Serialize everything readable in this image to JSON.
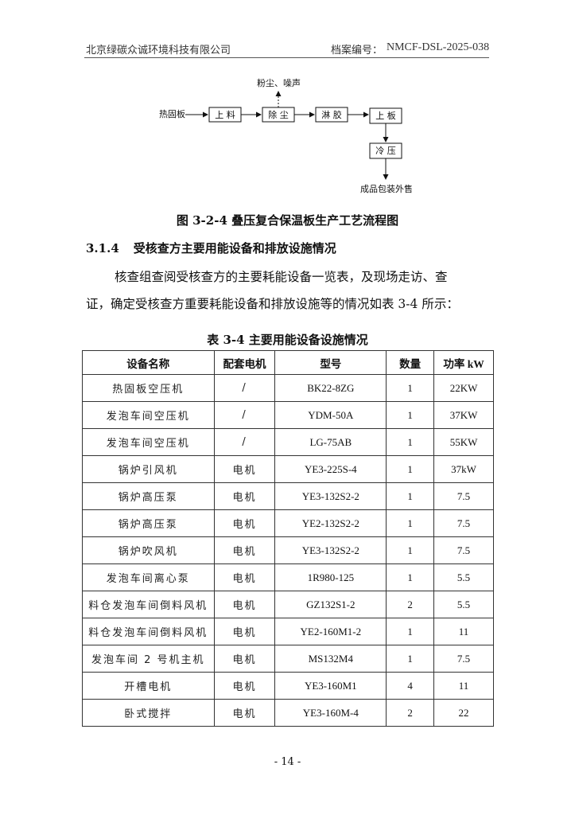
{
  "header": {
    "company": "北京绿碳众诚环境科技有限公司",
    "archive_label": "档案编号：",
    "archive_no": "NMCF-DSL-2025-038"
  },
  "flow": {
    "input": "热固板",
    "steps": [
      "上 料",
      "除 尘",
      "淋 胶",
      "上 板",
      "冷 压"
    ],
    "emission": "粉尘、噪声",
    "output": "成品包装外售"
  },
  "figure_caption": "图 3-2-4 叠压复合保温板生产工艺流程图",
  "section": {
    "number": "3.1.4",
    "title": "受核查方主要用能设备和排放设施情况"
  },
  "paragraph_line1": "核查组查阅受核查方的主要耗能设备一览表，及现场走访、查",
  "paragraph_line2": "证，确定受核查方重要耗能设备和排放设施等的情况如表 3-4 所示：",
  "table_caption": "表 3-4  主要用能设备设施情况",
  "table": {
    "headers": [
      "设备名称",
      "配套电机",
      "型号",
      "数量",
      "功率 kW"
    ],
    "rows": [
      [
        "热固板空压机",
        "/",
        "BK22-8ZG",
        "1",
        "22KW"
      ],
      [
        "发泡车间空压机",
        "/",
        "YDM-50A",
        "1",
        "37KW"
      ],
      [
        "发泡车间空压机",
        "/",
        "LG-75AB",
        "1",
        "55KW"
      ],
      [
        "锅炉引风机",
        "电机",
        "YE3-225S-4",
        "1",
        "37kW"
      ],
      [
        "锅炉高压泵",
        "电机",
        "YE3-132S2-2",
        "1",
        "7.5"
      ],
      [
        "锅炉高压泵",
        "电机",
        "YE2-132S2-2",
        "1",
        "7.5"
      ],
      [
        "锅炉吹风机",
        "电机",
        "YE3-132S2-2",
        "1",
        "7.5"
      ],
      [
        "发泡车间离心泵",
        "电机",
        "1R980-125",
        "1",
        "5.5"
      ],
      [
        "料仓发泡车间倒料风机",
        "电机",
        "GZ132S1-2",
        "2",
        "5.5"
      ],
      [
        "料仓发泡车间倒料风机",
        "电机",
        "YE2-160M1-2",
        "1",
        "11"
      ],
      [
        "发泡车间 2 号机主机",
        "电机",
        "MS132M4",
        "1",
        "7.5"
      ],
      [
        "开槽电机",
        "电机",
        "YE3-160M1",
        "4",
        "11"
      ],
      [
        "卧式搅拌",
        "电机",
        "YE3-160M-4",
        "2",
        "22"
      ]
    ]
  },
  "page_number": "- 14 -"
}
